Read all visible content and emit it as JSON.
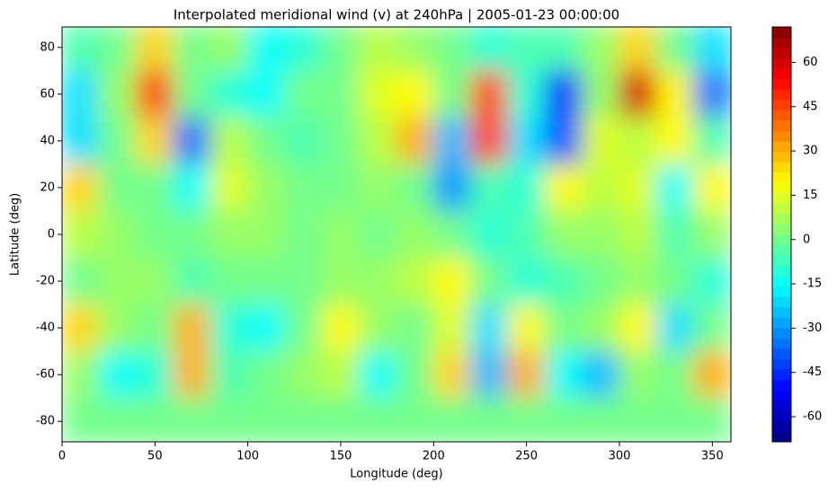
{
  "chart_data": {
    "type": "heatmap",
    "title": "Interpolated meridional wind (v) at 240hPa | 2005-01-23 00:00:00",
    "x_label": "Longitude (deg)",
    "y_label": "Latitude (deg)",
    "colormap": "jet",
    "x": [
      10,
      30,
      50,
      70,
      90,
      110,
      130,
      150,
      170,
      190,
      210,
      230,
      250,
      270,
      290,
      310,
      330,
      350
    ],
    "y": [
      80,
      60,
      40,
      20,
      0,
      -20,
      -40,
      -60,
      -80
    ],
    "z": [
      [
        -5,
        0,
        25,
        0,
        5,
        -15,
        -10,
        0,
        10,
        5,
        0,
        -10,
        -5,
        -5,
        5,
        25,
        0,
        -20
      ],
      [
        -20,
        5,
        45,
        0,
        -10,
        -15,
        0,
        0,
        15,
        20,
        0,
        45,
        -10,
        -45,
        5,
        60,
        20,
        -35
      ],
      [
        -20,
        0,
        25,
        -35,
        10,
        0,
        -5,
        0,
        10,
        30,
        -25,
        45,
        -20,
        -40,
        15,
        10,
        20,
        -5
      ],
      [
        25,
        0,
        0,
        -15,
        15,
        5,
        0,
        0,
        5,
        0,
        -30,
        -5,
        -10,
        20,
        10,
        15,
        -15,
        20
      ],
      [
        10,
        5,
        0,
        0,
        5,
        5,
        0,
        5,
        0,
        5,
        0,
        -10,
        -5,
        5,
        5,
        10,
        -5,
        5
      ],
      [
        0,
        5,
        5,
        -5,
        0,
        0,
        0,
        5,
        5,
        10,
        20,
        0,
        -10,
        -5,
        0,
        5,
        0,
        -10
      ],
      [
        25,
        5,
        0,
        30,
        -10,
        -15,
        0,
        20,
        5,
        0,
        15,
        -20,
        20,
        0,
        5,
        20,
        -20,
        0
      ],
      [
        5,
        -15,
        -10,
        30,
        -5,
        0,
        5,
        10,
        -15,
        0,
        25,
        -25,
        30,
        -15,
        -25,
        5,
        0,
        30
      ],
      [
        0,
        0,
        0,
        0,
        0,
        0,
        0,
        0,
        0,
        0,
        0,
        0,
        0,
        0,
        0,
        0,
        0,
        0
      ]
    ],
    "xlim": [
      0,
      360
    ],
    "ylim": [
      -88.75,
      88.75
    ],
    "xticks": [
      0,
      50,
      100,
      150,
      200,
      250,
      300,
      350
    ],
    "yticks": [
      -80,
      -60,
      -40,
      -20,
      0,
      20,
      40,
      60,
      80
    ],
    "clim": [
      -68.5,
      72
    ],
    "cticks": [
      -60,
      -45,
      -30,
      -15,
      0,
      15,
      30,
      45,
      60
    ]
  }
}
